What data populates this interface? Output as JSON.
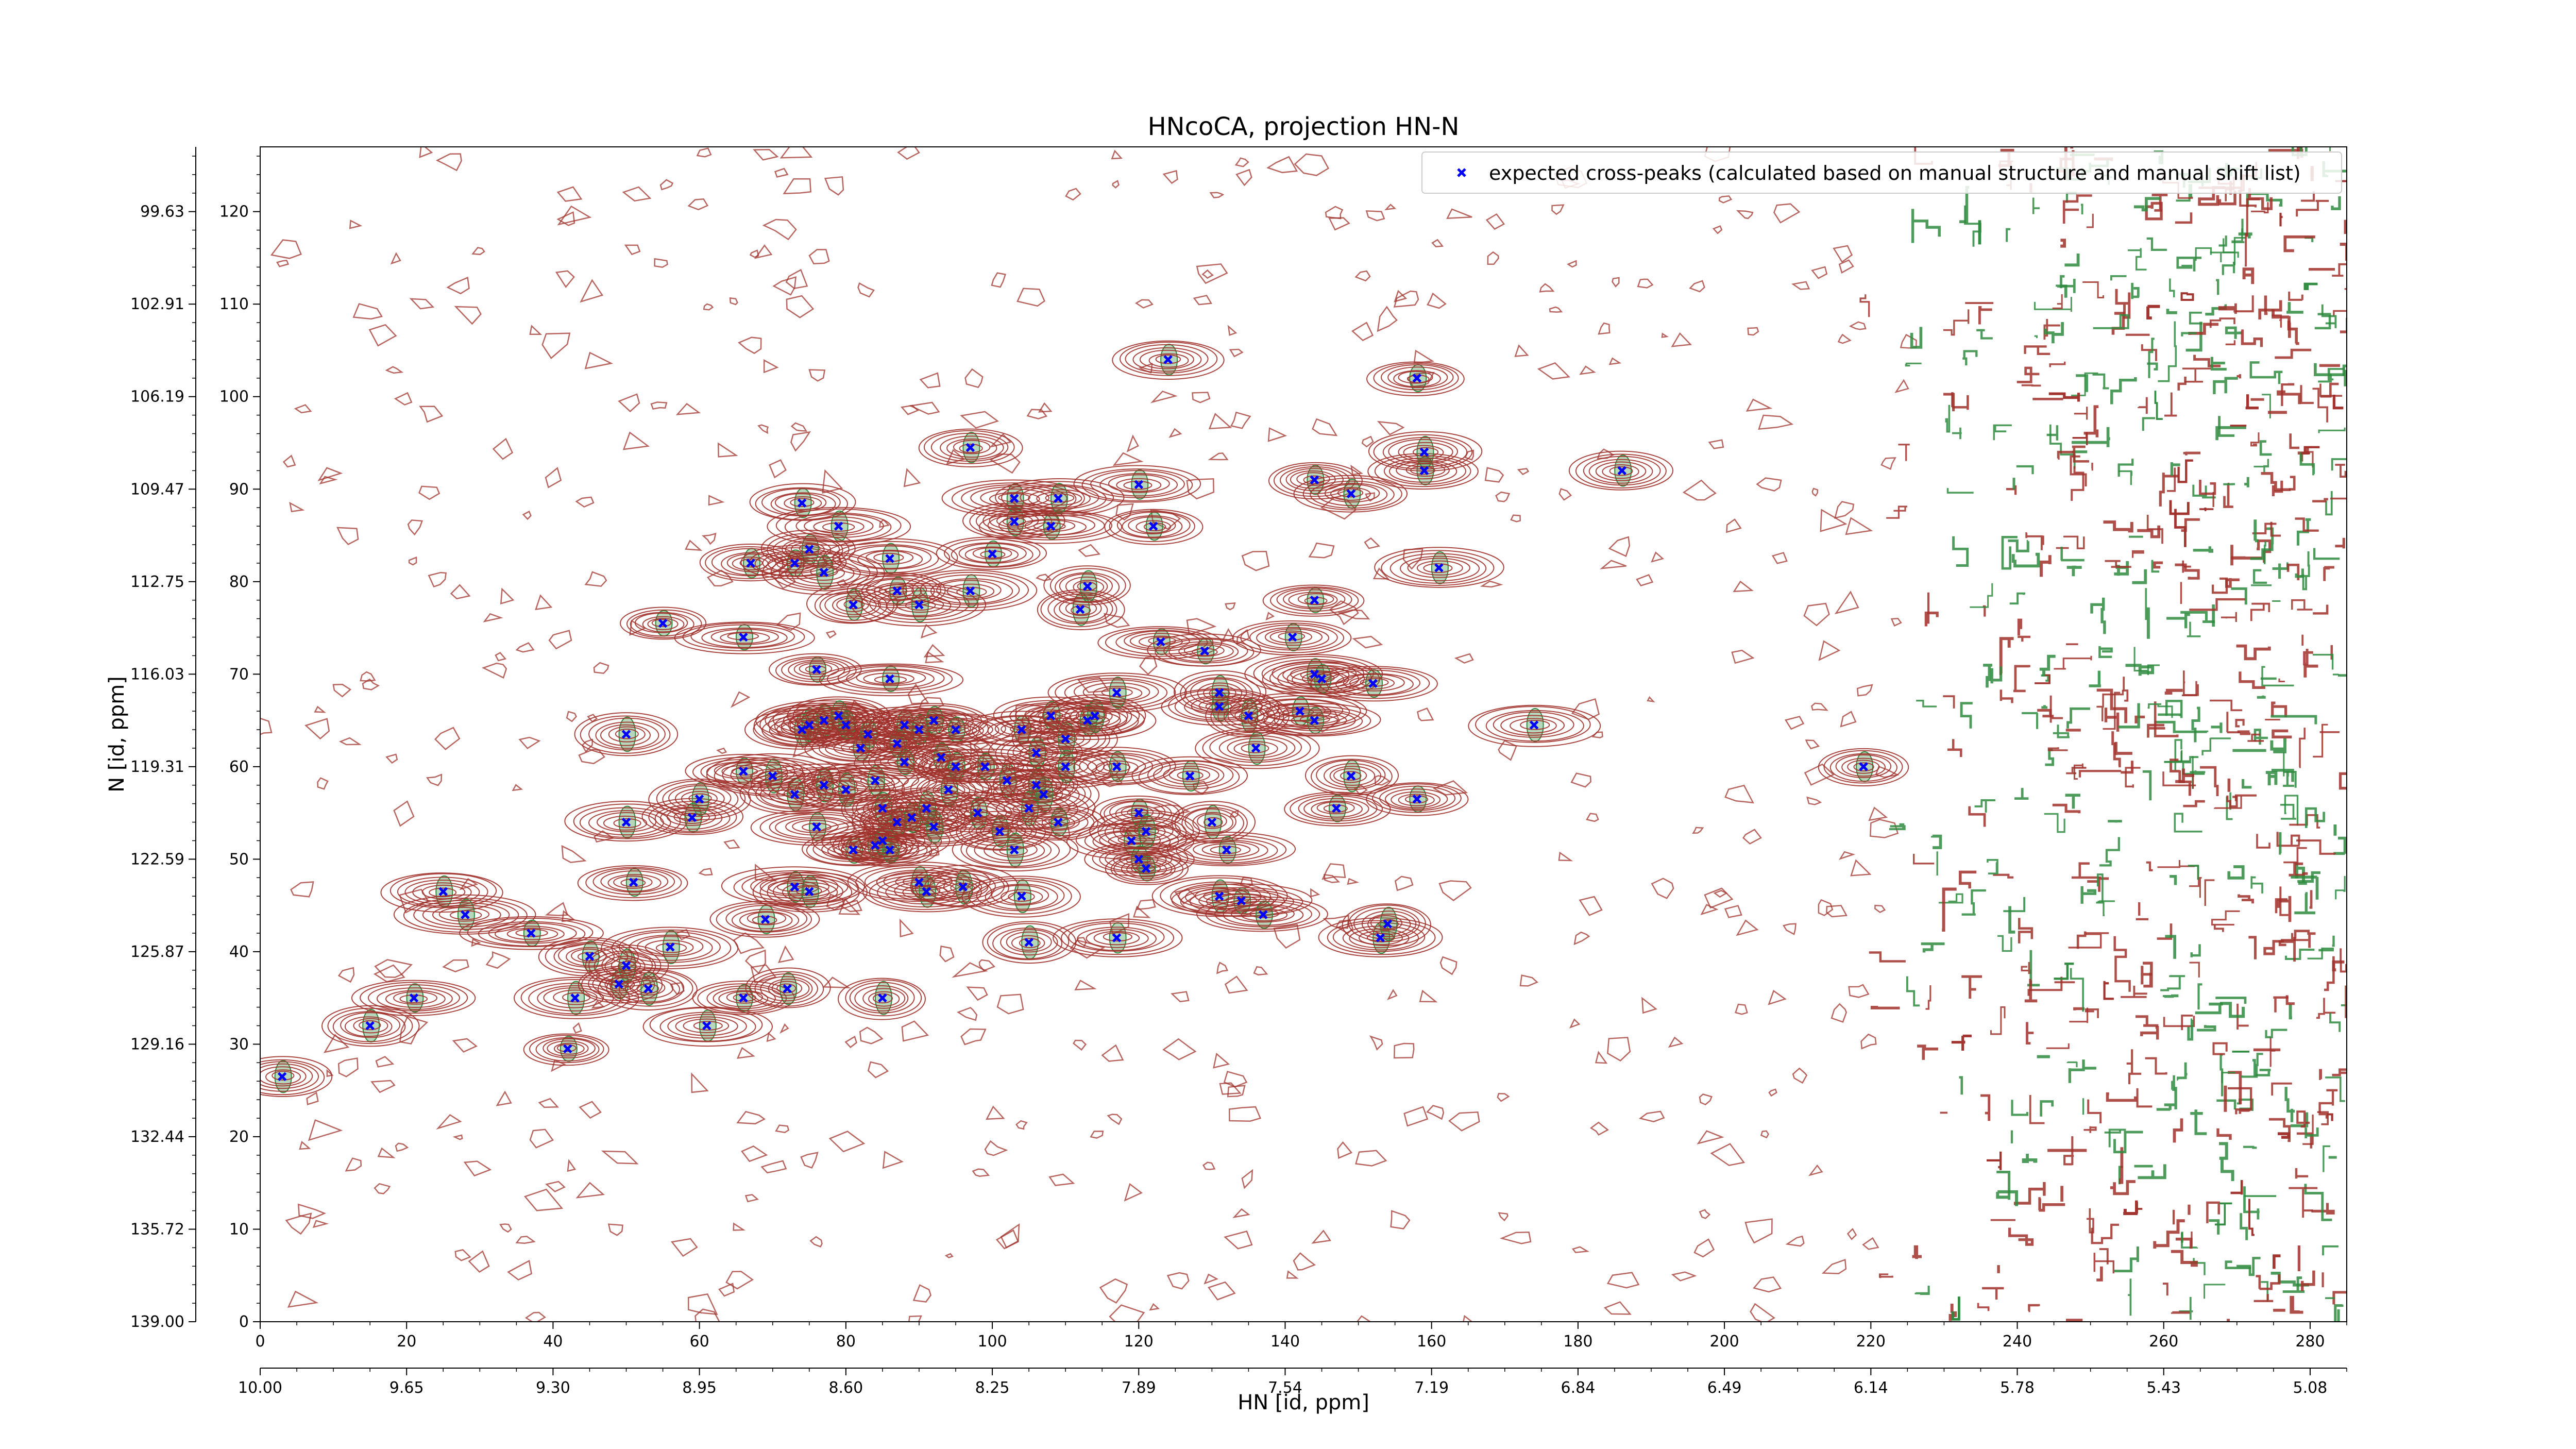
{
  "chart_data": {
    "type": "scatter",
    "title": "HNcoCA, projection HN-N",
    "xlabel": "HN [id, ppm]",
    "ylabel": "N [id, ppm]",
    "x_index_ticks": [
      "0",
      "20",
      "40",
      "60",
      "80",
      "100",
      "120",
      "140",
      "160",
      "180",
      "200",
      "220",
      "240",
      "260",
      "280"
    ],
    "x_ppm_ticks": [
      "10.00",
      "9.65",
      "9.30",
      "8.95",
      "8.60",
      "8.25",
      "7.89",
      "7.54",
      "7.19",
      "6.84",
      "6.49",
      "6.14",
      "5.78",
      "5.43",
      "5.08"
    ],
    "y_index_ticks": [
      "0",
      "10",
      "20",
      "30",
      "40",
      "50",
      "60",
      "70",
      "80",
      "90",
      "100",
      "110",
      "120"
    ],
    "y_ppm_ticks": [
      "139.00",
      "135.72",
      "132.44",
      "129.16",
      "125.87",
      "122.59",
      "119.31",
      "116.03",
      "112.75",
      "109.47",
      "106.19",
      "102.91",
      "99.63"
    ],
    "xlim": [
      0,
      285
    ],
    "ylim": [
      0,
      127
    ],
    "grid": false,
    "legend_position": "top-right",
    "colors": {
      "contour_positive": "#a0302a",
      "contour_negative": "#2e8b3e",
      "marker": "#0000ff",
      "axes": "#000000"
    },
    "series": [
      {
        "name": "expected cross-peaks (calculated based on manual structure and manual shift list)",
        "marker": "x",
        "points": [
          [
            3,
            26.5
          ],
          [
            15,
            32
          ],
          [
            21,
            35
          ],
          [
            25,
            46.5
          ],
          [
            28,
            44
          ],
          [
            37,
            42
          ],
          [
            42,
            29.5
          ],
          [
            43,
            35
          ],
          [
            45,
            39.5
          ],
          [
            49,
            36.5
          ],
          [
            50,
            38.5
          ],
          [
            50,
            54
          ],
          [
            50,
            63.5
          ],
          [
            51,
            47.5
          ],
          [
            53,
            36
          ],
          [
            55,
            75.5
          ],
          [
            56,
            40.5
          ],
          [
            59,
            54.5
          ],
          [
            60,
            56.5
          ],
          [
            61,
            32
          ],
          [
            66,
            74
          ],
          [
            66,
            35
          ],
          [
            66,
            59.5
          ],
          [
            67,
            82
          ],
          [
            69,
            43.5
          ],
          [
            70,
            59
          ],
          [
            72,
            36
          ],
          [
            73,
            47
          ],
          [
            73,
            82
          ],
          [
            73,
            57
          ],
          [
            74,
            88.5
          ],
          [
            74,
            64
          ],
          [
            75,
            83.5
          ],
          [
            75,
            46.5
          ],
          [
            75,
            64.5
          ],
          [
            76,
            70.5
          ],
          [
            76,
            53.5
          ],
          [
            77,
            81
          ],
          [
            77,
            65
          ],
          [
            77,
            58
          ],
          [
            79,
            86
          ],
          [
            79,
            65.5
          ],
          [
            80,
            57.5
          ],
          [
            80,
            64.5
          ],
          [
            81,
            77.5
          ],
          [
            81,
            51
          ],
          [
            82,
            62
          ],
          [
            83,
            63.5
          ],
          [
            84,
            58.5
          ],
          [
            84,
            51.5
          ],
          [
            85,
            52
          ],
          [
            85,
            55.5
          ],
          [
            85,
            35
          ],
          [
            86,
            51
          ],
          [
            86,
            69.5
          ],
          [
            86,
            82.5
          ],
          [
            87,
            62.5
          ],
          [
            87,
            79
          ],
          [
            87,
            54
          ],
          [
            88,
            64.5
          ],
          [
            88,
            60.5
          ],
          [
            89,
            54.5
          ],
          [
            90,
            47.5
          ],
          [
            90,
            77.5
          ],
          [
            90,
            64
          ],
          [
            91,
            55.5
          ],
          [
            91,
            46.5
          ],
          [
            92,
            53.5
          ],
          [
            92,
            65
          ],
          [
            93,
            61
          ],
          [
            94,
            57.5
          ],
          [
            95,
            60
          ],
          [
            95,
            64
          ],
          [
            96,
            47
          ],
          [
            97,
            79
          ],
          [
            97,
            94.5
          ],
          [
            98,
            55
          ],
          [
            99,
            60
          ],
          [
            100,
            83
          ],
          [
            101,
            53
          ],
          [
            102,
            58.5
          ],
          [
            103,
            86.5
          ],
          [
            103,
            89
          ],
          [
            103,
            51
          ],
          [
            104,
            46
          ],
          [
            104,
            64
          ],
          [
            105,
            55.5
          ],
          [
            105,
            41
          ],
          [
            106,
            58
          ],
          [
            106,
            61.5
          ],
          [
            107,
            57
          ],
          [
            108,
            86
          ],
          [
            108,
            65.5
          ],
          [
            109,
            54
          ],
          [
            109,
            89
          ],
          [
            110,
            63
          ],
          [
            110,
            60
          ],
          [
            112,
            77
          ],
          [
            113,
            79.5
          ],
          [
            113,
            65
          ],
          [
            114,
            65.5
          ],
          [
            117,
            68
          ],
          [
            117,
            60
          ],
          [
            117,
            41.5
          ],
          [
            119,
            52
          ],
          [
            120,
            50
          ],
          [
            120,
            55
          ],
          [
            121,
            53
          ],
          [
            121,
            49
          ],
          [
            122,
            86
          ],
          [
            123,
            73.5
          ],
          [
            120,
            90.5
          ],
          [
            124,
            104
          ],
          [
            127,
            59
          ],
          [
            129,
            72.5
          ],
          [
            130,
            54
          ],
          [
            131,
            68
          ],
          [
            131,
            66.5
          ],
          [
            131,
            46
          ],
          [
            132,
            51
          ],
          [
            134,
            45.5
          ],
          [
            135,
            65.5
          ],
          [
            136,
            62
          ],
          [
            137,
            44
          ],
          [
            141,
            74
          ],
          [
            142,
            66
          ],
          [
            144,
            91
          ],
          [
            144,
            65
          ],
          [
            144,
            70
          ],
          [
            144,
            78
          ],
          [
            145,
            69.5
          ],
          [
            147,
            55.5
          ],
          [
            149,
            89.5
          ],
          [
            149,
            59
          ],
          [
            152,
            69
          ],
          [
            153,
            41.5
          ],
          [
            154,
            43
          ],
          [
            158,
            56.5
          ],
          [
            158,
            102
          ],
          [
            159,
            92
          ],
          [
            159,
            94
          ],
          [
            161,
            81.5
          ],
          [
            174,
            64.5
          ],
          [
            186,
            92
          ],
          [
            219,
            60
          ]
        ]
      }
    ]
  }
}
